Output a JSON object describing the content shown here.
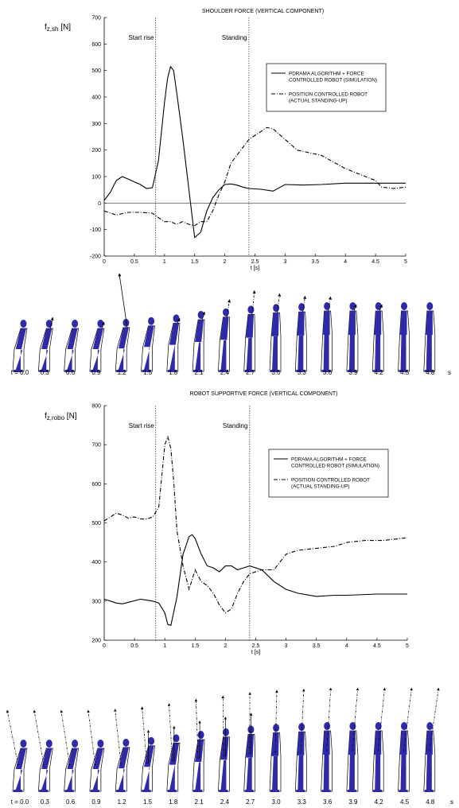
{
  "chart_data": [
    {
      "type": "line",
      "title": "SHOULDER FORCE (VERTICAL COMPONENT)",
      "ylabel_main": "f",
      "ylabel_sub": "z,sh",
      "ylabel_unit": "[N]",
      "xlabel": "t [s]",
      "xlim": [
        0,
        5
      ],
      "ylim": [
        -200,
        700
      ],
      "xticks": [
        "0",
        "0.5",
        "1",
        "1.5",
        "2",
        "2.5",
        "3",
        "3.5",
        "4",
        "4.5",
        "5"
      ],
      "yticks": [
        "-200",
        "-100",
        "0",
        "100",
        "200",
        "300",
        "400",
        "500",
        "600",
        "700"
      ],
      "annotations": [
        {
          "label": "Start rise",
          "x": 0.85
        },
        {
          "label": "Standing",
          "x": 2.4
        }
      ],
      "legend": {
        "placement": "top-right",
        "entries": [
          {
            "line1": "PDRAMA  ALGORITHM + FORCE",
            "line2": "CONTROLLED ROBOT (SIMULATION)",
            "style": "solid"
          },
          {
            "line1": "POSITION CONTROLLED ROBOT",
            "line2": "(ACTUAL STANDING-UP)",
            "style": "dashdot"
          }
        ]
      },
      "series": [
        {
          "style": "solid",
          "x": [
            0,
            0.1,
            0.2,
            0.3,
            0.4,
            0.5,
            0.6,
            0.7,
            0.8,
            0.9,
            1.0,
            1.05,
            1.1,
            1.15,
            1.2,
            1.3,
            1.4,
            1.5,
            1.6,
            1.7,
            1.8,
            1.9,
            2.0,
            2.1,
            2.2,
            2.3,
            2.4,
            2.6,
            2.8,
            3.0,
            3.3,
            3.6,
            4.0,
            4.4,
            4.8,
            5.0
          ],
          "y": [
            10,
            40,
            85,
            100,
            90,
            80,
            70,
            55,
            58,
            160,
            380,
            470,
            515,
            500,
            420,
            250,
            60,
            -130,
            -110,
            -30,
            20,
            50,
            70,
            72,
            68,
            60,
            55,
            52,
            45,
            70,
            68,
            70,
            75,
            75,
            75,
            75
          ]
        },
        {
          "style": "dashdot",
          "x": [
            0,
            0.2,
            0.4,
            0.5,
            0.6,
            0.8,
            0.9,
            1.0,
            1.1,
            1.2,
            1.3,
            1.4,
            1.5,
            1.6,
            1.7,
            1.8,
            1.9,
            2.0,
            2.1,
            2.2,
            2.4,
            2.6,
            2.7,
            2.8,
            3.0,
            3.2,
            3.4,
            3.6,
            4.0,
            4.5,
            4.6,
            4.8,
            5.0
          ],
          "y": [
            -30,
            -45,
            -35,
            -35,
            -35,
            -38,
            -55,
            -70,
            -70,
            -80,
            -70,
            -80,
            -85,
            -70,
            -70,
            -30,
            30,
            80,
            150,
            180,
            240,
            270,
            285,
            280,
            240,
            200,
            190,
            180,
            130,
            85,
            60,
            55,
            60
          ]
        }
      ]
    },
    {
      "type": "line",
      "title": "ROBOT SUPPORTIVE FORCE (VERTICAL COMPONENT)",
      "ylabel_main": "f",
      "ylabel_sub": "z,robo",
      "ylabel_unit": "[N]",
      "xlabel": "t [s]",
      "xlim": [
        0,
        5
      ],
      "ylim": [
        200,
        800
      ],
      "xticks": [
        "0",
        "0.5",
        "1",
        "1.5",
        "2",
        "2.5",
        "3",
        "3.5",
        "4",
        "4.5",
        "5"
      ],
      "yticks": [
        "200",
        "300",
        "400",
        "500",
        "600",
        "700",
        "800"
      ],
      "annotations": [
        {
          "label": "Start rise",
          "x": 0.85
        },
        {
          "label": "Standing",
          "x": 2.4
        }
      ],
      "legend": {
        "placement": "top-right",
        "entries": [
          {
            "line1": "PDRAMA  ALGORITHM + FORCE",
            "line2": "CONTROLLED ROBOT (SIMULATION)",
            "style": "solid"
          },
          {
            "line1": "POSITION CONTROLLED ROBOT",
            "line2": "(ACTUAL STANDING-UP)",
            "style": "dashdot"
          }
        ]
      },
      "series": [
        {
          "style": "solid",
          "x": [
            0,
            0.1,
            0.2,
            0.3,
            0.4,
            0.6,
            0.8,
            0.9,
            1.0,
            1.05,
            1.1,
            1.2,
            1.3,
            1.4,
            1.45,
            1.5,
            1.6,
            1.7,
            1.8,
            1.9,
            2.0,
            2.1,
            2.2,
            2.3,
            2.4,
            2.6,
            2.8,
            3.0,
            3.2,
            3.5,
            3.8,
            4.0,
            4.5,
            5.0
          ],
          "y": [
            305,
            300,
            295,
            293,
            297,
            305,
            300,
            295,
            270,
            240,
            238,
            310,
            420,
            465,
            470,
            460,
            420,
            390,
            385,
            375,
            390,
            390,
            380,
            385,
            390,
            380,
            350,
            330,
            320,
            312,
            315,
            315,
            318,
            318
          ]
        },
        {
          "style": "dashdot",
          "x": [
            0,
            0.1,
            0.2,
            0.3,
            0.4,
            0.5,
            0.6,
            0.7,
            0.8,
            0.9,
            0.95,
            1.0,
            1.05,
            1.1,
            1.15,
            1.2,
            1.3,
            1.4,
            1.5,
            1.6,
            1.7,
            1.8,
            1.9,
            2.0,
            2.1,
            2.2,
            2.3,
            2.4,
            2.6,
            2.8,
            3.0,
            3.2,
            3.5,
            3.8,
            4.0,
            4.3,
            4.6,
            5.0
          ],
          "y": [
            505,
            515,
            525,
            520,
            512,
            515,
            510,
            510,
            515,
            540,
            620,
            700,
            720,
            690,
            600,
            480,
            390,
            330,
            380,
            350,
            340,
            320,
            290,
            270,
            280,
            320,
            350,
            370,
            380,
            380,
            420,
            430,
            435,
            440,
            450,
            455,
            455,
            462
          ]
        }
      ]
    }
  ],
  "figure_rows": [
    {
      "time_labels": [
        "t = 0.0",
        "0.3",
        "0.6",
        "0.9",
        "1.2",
        "1.5",
        "1.8",
        "2.1",
        "2.4",
        "2.7",
        "3.0",
        "3.3",
        "3.6",
        "3.9",
        "4.2",
        "4.5",
        "4.8"
      ],
      "unit": "s",
      "body_color": "#2f2aa8"
    },
    {
      "time_labels": [
        "t = 0.0",
        "0.3",
        "0.6",
        "0.9",
        "1.2",
        "1.5",
        "1.8",
        "2.1",
        "2.4",
        "2.7",
        "3.0",
        "3.3",
        "3.6",
        "3.9",
        "4.2",
        "4.5",
        "4.8"
      ],
      "unit": "s",
      "body_color": "#2f2aa8"
    }
  ]
}
